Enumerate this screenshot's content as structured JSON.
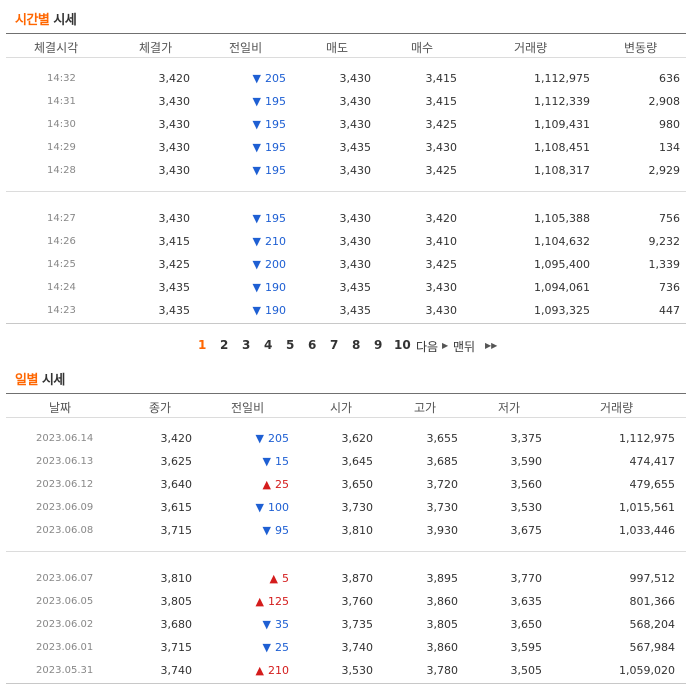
{
  "time_section": {
    "title_highlight": "시간별",
    "title_rest": " 시세",
    "headers": [
      "체결시각",
      "체결가",
      "전일비",
      "매도",
      "매수",
      "거래량",
      "변동량"
    ],
    "groups": [
      [
        {
          "time": "14:32",
          "price": "3,420",
          "dir": "down",
          "change": "205",
          "ask": "3,430",
          "bid": "3,415",
          "volume": "1,112,975",
          "delta": "636"
        },
        {
          "time": "14:31",
          "price": "3,430",
          "dir": "down",
          "change": "195",
          "ask": "3,430",
          "bid": "3,415",
          "volume": "1,112,339",
          "delta": "2,908"
        },
        {
          "time": "14:30",
          "price": "3,430",
          "dir": "down",
          "change": "195",
          "ask": "3,430",
          "bid": "3,425",
          "volume": "1,109,431",
          "delta": "980"
        },
        {
          "time": "14:29",
          "price": "3,430",
          "dir": "down",
          "change": "195",
          "ask": "3,435",
          "bid": "3,430",
          "volume": "1,108,451",
          "delta": "134"
        },
        {
          "time": "14:28",
          "price": "3,430",
          "dir": "down",
          "change": "195",
          "ask": "3,430",
          "bid": "3,425",
          "volume": "1,108,317",
          "delta": "2,929"
        }
      ],
      [
        {
          "time": "14:27",
          "price": "3,430",
          "dir": "down",
          "change": "195",
          "ask": "3,430",
          "bid": "3,420",
          "volume": "1,105,388",
          "delta": "756"
        },
        {
          "time": "14:26",
          "price": "3,415",
          "dir": "down",
          "change": "210",
          "ask": "3,430",
          "bid": "3,410",
          "volume": "1,104,632",
          "delta": "9,232"
        },
        {
          "time": "14:25",
          "price": "3,425",
          "dir": "down",
          "change": "200",
          "ask": "3,430",
          "bid": "3,425",
          "volume": "1,095,400",
          "delta": "1,339"
        },
        {
          "time": "14:24",
          "price": "3,435",
          "dir": "down",
          "change": "190",
          "ask": "3,435",
          "bid": "3,430",
          "volume": "1,094,061",
          "delta": "736"
        },
        {
          "time": "14:23",
          "price": "3,435",
          "dir": "down",
          "change": "190",
          "ask": "3,435",
          "bid": "3,430",
          "volume": "1,093,325",
          "delta": "447"
        }
      ]
    ]
  },
  "pagination": {
    "pages": [
      "1",
      "2",
      "3",
      "4",
      "5",
      "6",
      "7",
      "8",
      "9",
      "10"
    ],
    "current": "1",
    "next_label": "다음",
    "last_label": "맨뒤",
    "next_icon": "triangle-right-icon",
    "last_icon": "double-triangle-right-icon"
  },
  "daily_section": {
    "title_highlight": "일별",
    "title_rest": " 시세",
    "headers": [
      "날짜",
      "종가",
      "전일비",
      "시가",
      "고가",
      "저가",
      "거래량"
    ],
    "groups": [
      [
        {
          "date": "2023.06.14",
          "close": "3,420",
          "dir": "down",
          "change": "205",
          "open": "3,620",
          "high": "3,655",
          "low": "3,375",
          "volume": "1,112,975"
        },
        {
          "date": "2023.06.13",
          "close": "3,625",
          "dir": "down",
          "change": "15",
          "open": "3,645",
          "high": "3,685",
          "low": "3,590",
          "volume": "474,417"
        },
        {
          "date": "2023.06.12",
          "close": "3,640",
          "dir": "up",
          "change": "25",
          "open": "3,650",
          "high": "3,720",
          "low": "3,560",
          "volume": "479,655"
        },
        {
          "date": "2023.06.09",
          "close": "3,615",
          "dir": "down",
          "change": "100",
          "open": "3,730",
          "high": "3,730",
          "low": "3,530",
          "volume": "1,015,561"
        },
        {
          "date": "2023.06.08",
          "close": "3,715",
          "dir": "down",
          "change": "95",
          "open": "3,810",
          "high": "3,930",
          "low": "3,675",
          "volume": "1,033,446"
        }
      ],
      [
        {
          "date": "2023.06.07",
          "close": "3,810",
          "dir": "up",
          "change": "5",
          "open": "3,870",
          "high": "3,895",
          "low": "3,770",
          "volume": "997,512"
        },
        {
          "date": "2023.06.05",
          "close": "3,805",
          "dir": "up",
          "change": "125",
          "open": "3,760",
          "high": "3,860",
          "low": "3,635",
          "volume": "801,366"
        },
        {
          "date": "2023.06.02",
          "close": "3,680",
          "dir": "down",
          "change": "35",
          "open": "3,735",
          "high": "3,805",
          "low": "3,650",
          "volume": "568,204"
        },
        {
          "date": "2023.06.01",
          "close": "3,715",
          "dir": "down",
          "change": "25",
          "open": "3,740",
          "high": "3,860",
          "low": "3,595",
          "volume": "567,984"
        },
        {
          "date": "2023.05.31",
          "close": "3,740",
          "dir": "up",
          "change": "210",
          "open": "3,530",
          "high": "3,780",
          "low": "3,505",
          "volume": "1,059,020"
        }
      ]
    ]
  },
  "colors": {
    "accent": "#ff6600",
    "down": "#1e5fd3",
    "up": "#d41c1c"
  }
}
